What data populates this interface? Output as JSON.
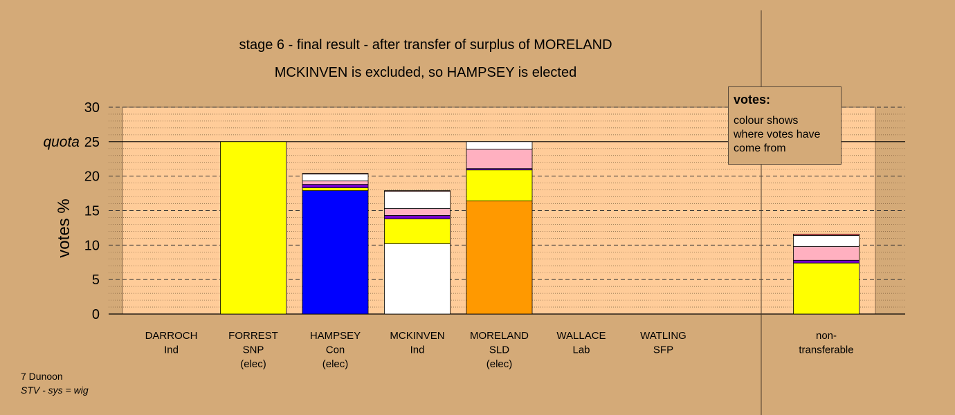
{
  "title_line1": "stage 6 - final result - after transfer of surplus of MORELAND",
  "title_line2": "MCKINVEN is excluded, so HAMPSEY is elected",
  "legend": {
    "title": "votes:",
    "description": "colour shows where votes have come from"
  },
  "footer": {
    "line1": "7 Dunoon",
    "line2": "STV - sys = wig"
  },
  "colors": {
    "background": "#d4aa78",
    "plot_area": "#ffcc99",
    "Ind": "#ffffff",
    "SNP": "#ffff00",
    "Con": "#0000ff",
    "SLD": "#ff9900",
    "Lab": "#ff6666",
    "SFP": "#7700cc",
    "other": "#ffb0c0"
  },
  "chart_data": {
    "type": "bar",
    "stacked": true,
    "ylabel": "votes %",
    "ylim": [
      0,
      30
    ],
    "yticks": [
      0,
      5,
      10,
      15,
      20,
      25,
      30
    ],
    "quota": 25,
    "quota_label": "quota",
    "grid": true,
    "candidates": [
      {
        "name": "DARROCH",
        "party": "Ind",
        "status": "",
        "segments": []
      },
      {
        "name": "FORREST",
        "party": "SNP",
        "status": "(elec)",
        "segments": [
          {
            "color": "#ffff00",
            "value": 25.0
          }
        ]
      },
      {
        "name": "HAMPSEY",
        "party": "Con",
        "status": "(elec)",
        "segments": [
          {
            "color": "#0000ff",
            "value": 17.9
          },
          {
            "color": "#ffff00",
            "value": 0.4
          },
          {
            "color": "#7700cc",
            "value": 0.5
          },
          {
            "color": "#ffb0c0",
            "value": 0.5
          },
          {
            "color": "#ffffff",
            "value": 1.0
          },
          {
            "color": "#ff6666",
            "value": 0.1
          }
        ]
      },
      {
        "name": "MCKINVEN",
        "party": "Ind",
        "status": "",
        "segments": [
          {
            "color": "#ffffff",
            "value": 10.2
          },
          {
            "color": "#ffff00",
            "value": 3.6
          },
          {
            "color": "#7700cc",
            "value": 0.5
          },
          {
            "color": "#ffb0c0",
            "value": 1.0
          },
          {
            "color": "#ffffff",
            "value": 2.5
          },
          {
            "color": "#ff6666",
            "value": 0.1
          }
        ]
      },
      {
        "name": "MORELAND",
        "party": "SLD",
        "status": "(elec)",
        "segments": [
          {
            "color": "#ff9900",
            "value": 16.4
          },
          {
            "color": "#ffff00",
            "value": 4.5
          },
          {
            "color": "#7700cc",
            "value": 0.2
          },
          {
            "color": "#ffb0c0",
            "value": 2.8
          },
          {
            "color": "#ffffff",
            "value": 1.1
          }
        ]
      },
      {
        "name": "WALLACE",
        "party": "Lab",
        "status": "",
        "segments": []
      },
      {
        "name": "WATLING",
        "party": "SFP",
        "status": "",
        "segments": []
      }
    ],
    "nontransferable": {
      "label_line1": "non-",
      "label_line2": "transferable",
      "segments": [
        {
          "color": "#ffff00",
          "value": 7.4
        },
        {
          "color": "#7700cc",
          "value": 0.4
        },
        {
          "color": "#ffb0c0",
          "value": 2.0
        },
        {
          "color": "#ffffff",
          "value": 1.6
        },
        {
          "color": "#ff6666",
          "value": 0.2
        }
      ]
    }
  }
}
